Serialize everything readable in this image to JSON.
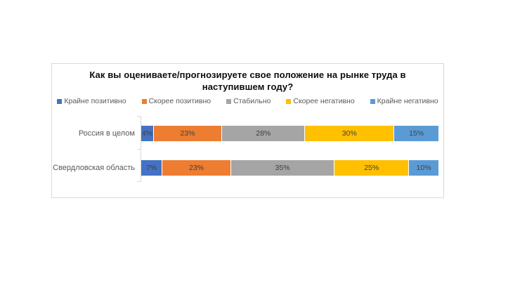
{
  "page": {
    "background": "#ffffff"
  },
  "panel": {
    "background": "#ffffff",
    "border_color": "#d9d9d9"
  },
  "title": {
    "line1": "Как вы оцениваете/прогнозируете свое положение на рынке труда в",
    "line2": "наступившем году?"
  },
  "chart_data": {
    "type": "bar",
    "orientation": "horizontal",
    "stacked": true,
    "title": "Как вы оцениваете/прогнозируете свое положение на рынке труда в наступившем году?",
    "categories": [
      "Россия в целом",
      "Свердловская область"
    ],
    "series": [
      {
        "name": "Крайне позитивно",
        "color": "#4472c4",
        "values": [
          4,
          7
        ]
      },
      {
        "name": "Скорее позитивно",
        "color": "#ed7d31",
        "values": [
          23,
          23
        ]
      },
      {
        "name": "Стабильно",
        "color": "#a5a5a5",
        "values": [
          28,
          35
        ]
      },
      {
        "name": "Скорее негативно",
        "color": "#ffc000",
        "values": [
          30,
          25
        ]
      },
      {
        "name": "Крайне негативно",
        "color": "#5b9bd5",
        "values": [
          15,
          10
        ]
      }
    ],
    "value_suffix": "%",
    "xlim": [
      0,
      100
    ],
    "grid": false,
    "legend_position": "top",
    "data_label_color": "#404040",
    "category_label_color": "#595959",
    "legend_text_color": "#595959",
    "axis_color": "#d9d9d9"
  }
}
